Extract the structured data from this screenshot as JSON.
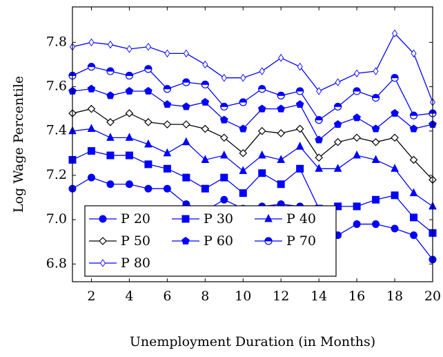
{
  "chart_data": {
    "type": "line",
    "x_label": "Unemployment Duration (in Months)",
    "y_label": "Log Wage Percentile",
    "x": [
      1,
      2,
      3,
      4,
      5,
      6,
      7,
      8,
      9,
      10,
      11,
      12,
      13,
      14,
      15,
      16,
      17,
      18,
      19,
      20
    ],
    "xlim": [
      1,
      20
    ],
    "xticks": [
      2,
      4,
      6,
      8,
      10,
      12,
      14,
      16,
      18,
      20
    ],
    "ylim": [
      6.72,
      7.96
    ],
    "yticks": [
      6.8,
      {
        "value": 7,
        "label": "7.0"
      },
      7.2,
      7.4,
      7.6,
      7.8
    ],
    "legend": "lower left",
    "series": [
      {
        "name": "P 20",
        "color": "#0000ff",
        "marker": "circle",
        "values": [
          7.14,
          7.19,
          7.16,
          7.16,
          7.14,
          7.14,
          7.07,
          7.04,
          7.09,
          7.05,
          7.06,
          7.07,
          7.06,
          6.94,
          6.93,
          6.98,
          6.98,
          6.96,
          6.93,
          6.82
        ]
      },
      {
        "name": "P 30",
        "color": "#0000ff",
        "marker": "square",
        "values": [
          7.27,
          7.31,
          7.29,
          7.29,
          7.25,
          7.23,
          7.19,
          7.14,
          7.19,
          7.12,
          7.21,
          7.16,
          7.23,
          7.05,
          7.06,
          7.06,
          7.09,
          7.11,
          7.01,
          6.94
        ]
      },
      {
        "name": "P 40",
        "color": "#0000ff",
        "marker": "triangle",
        "values": [
          7.4,
          7.41,
          7.37,
          7.37,
          7.34,
          7.3,
          7.35,
          7.27,
          7.29,
          7.22,
          7.29,
          7.27,
          7.33,
          7.23,
          7.23,
          7.29,
          7.27,
          7.23,
          7.12,
          7.06
        ]
      },
      {
        "name": "P 50",
        "color": "#000000",
        "marker": "diamond",
        "values": [
          7.48,
          7.5,
          7.44,
          7.48,
          7.44,
          7.43,
          7.43,
          7.41,
          7.37,
          7.3,
          7.4,
          7.39,
          7.41,
          7.28,
          7.35,
          7.37,
          7.35,
          7.37,
          7.27,
          7.18
        ]
      },
      {
        "name": "P 60",
        "color": "#0000ff",
        "marker": "pentagon",
        "values": [
          7.58,
          7.59,
          7.56,
          7.58,
          7.58,
          7.52,
          7.51,
          7.53,
          7.45,
          7.41,
          7.5,
          7.5,
          7.52,
          7.36,
          7.43,
          7.46,
          7.41,
          7.48,
          7.41,
          7.43
        ]
      },
      {
        "name": "P 70",
        "color": "#0000ff",
        "marker": "halfcircle",
        "values": [
          7.65,
          7.69,
          7.67,
          7.65,
          7.68,
          7.59,
          7.62,
          7.61,
          7.51,
          7.53,
          7.59,
          7.56,
          7.58,
          7.45,
          7.51,
          7.58,
          7.55,
          7.64,
          7.47,
          7.48
        ]
      },
      {
        "name": "P 80",
        "color": "#0000ff",
        "marker": "thin-diamond",
        "values": [
          7.78,
          7.8,
          7.79,
          7.77,
          7.78,
          7.75,
          7.75,
          7.7,
          7.64,
          7.64,
          7.67,
          7.73,
          7.69,
          7.58,
          7.62,
          7.66,
          7.67,
          7.84,
          7.75,
          7.53
        ]
      }
    ]
  }
}
